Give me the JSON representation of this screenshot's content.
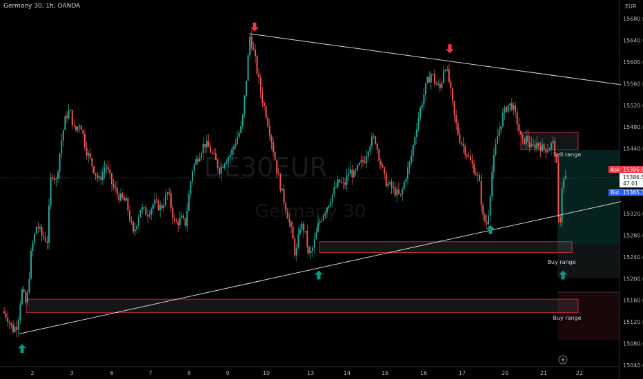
{
  "header": {
    "symbol_line": "Germany 30, 1h, OANDA"
  },
  "watermark": {
    "ticker": "DE30EUR",
    "name": "Germany 30"
  },
  "chart_data": {
    "type": "candlestick",
    "currency": "EUR",
    "y_ticks": [
      15040,
      15080,
      15120,
      15160,
      15200,
      15240,
      15280,
      15320,
      15360,
      15440,
      15480,
      15520,
      15560,
      15600,
      15640,
      15680
    ],
    "ylim": [
      15030,
      15700
    ],
    "x_ticks": [
      "2",
      "3",
      "6",
      "7",
      "8",
      "9",
      "10",
      "13",
      "14",
      "15",
      "16",
      "17",
      "20",
      "21",
      "22"
    ],
    "price_labels": {
      "ask_label": "Ask",
      "ask": "15386.8",
      "current": "15386.5",
      "countdown": "47:01",
      "bid_label": "Bid",
      "bid": "15385.3"
    },
    "zones": [
      {
        "label": "Sell range",
        "kind": "sell",
        "high": 15470,
        "low": 15438
      },
      {
        "label": "Buy range",
        "kind": "buy",
        "high": 15268,
        "low": 15248
      },
      {
        "label": "Buy range",
        "kind": "buy",
        "high": 15162,
        "low": 15137
      }
    ],
    "trendlines": [
      {
        "name": "upper",
        "from": [
          362,
          15652
        ],
        "to": [
          900,
          15558
        ]
      },
      {
        "name": "lower",
        "from": [
          28,
          15098
        ],
        "to": [
          900,
          15342
        ]
      }
    ],
    "markers": [
      {
        "dir": "up",
        "x": 32,
        "price": 15070
      },
      {
        "dir": "down",
        "x": 369,
        "price": 15665
      },
      {
        "dir": "up",
        "x": 462,
        "price": 15206
      },
      {
        "dir": "down",
        "x": 652,
        "price": 15625
      },
      {
        "dir": "up",
        "x": 711,
        "price": 15290
      },
      {
        "dir": "up",
        "x": 816,
        "price": 15206
      }
    ],
    "path": [
      [
        5,
        15140
      ],
      [
        12,
        15130
      ],
      [
        20,
        15105
      ],
      [
        27,
        15115
      ],
      [
        33,
        15180
      ],
      [
        40,
        15150
      ],
      [
        47,
        15250
      ],
      [
        55,
        15300
      ],
      [
        62,
        15280
      ],
      [
        70,
        15270
      ],
      [
        76,
        15400
      ],
      [
        83,
        15380
      ],
      [
        90,
        15450
      ],
      [
        97,
        15500
      ],
      [
        103,
        15510
      ],
      [
        110,
        15470
      ],
      [
        118,
        15490
      ],
      [
        126,
        15440
      ],
      [
        135,
        15410
      ],
      [
        145,
        15380
      ],
      [
        155,
        15410
      ],
      [
        165,
        15370
      ],
      [
        175,
        15350
      ],
      [
        185,
        15340
      ],
      [
        195,
        15280
      ],
      [
        205,
        15330
      ],
      [
        215,
        15320
      ],
      [
        225,
        15340
      ],
      [
        235,
        15330
      ],
      [
        245,
        15360
      ],
      [
        255,
        15300
      ],
      [
        265,
        15310
      ],
      [
        270,
        15300
      ],
      [
        280,
        15400
      ],
      [
        290,
        15430
      ],
      [
        298,
        15450
      ],
      [
        305,
        15440
      ],
      [
        313,
        15420
      ],
      [
        320,
        15400
      ],
      [
        328,
        15420
      ],
      [
        336,
        15430
      ],
      [
        345,
        15460
      ],
      [
        352,
        15480
      ],
      [
        358,
        15560
      ],
      [
        364,
        15650
      ],
      [
        372,
        15600
      ],
      [
        380,
        15540
      ],
      [
        388,
        15500
      ],
      [
        396,
        15450
      ],
      [
        403,
        15400
      ],
      [
        410,
        15360
      ],
      [
        418,
        15320
      ],
      [
        425,
        15280
      ],
      [
        430,
        15240
      ],
      [
        437,
        15300
      ],
      [
        443,
        15290
      ],
      [
        450,
        15240
      ],
      [
        456,
        15260
      ],
      [
        463,
        15300
      ],
      [
        470,
        15320
      ],
      [
        478,
        15340
      ],
      [
        485,
        15360
      ],
      [
        493,
        15380
      ],
      [
        500,
        15370
      ],
      [
        508,
        15400
      ],
      [
        515,
        15390
      ],
      [
        523,
        15410
      ],
      [
        530,
        15420
      ],
      [
        537,
        15450
      ],
      [
        545,
        15460
      ],
      [
        552,
        15420
      ],
      [
        560,
        15380
      ],
      [
        567,
        15370
      ],
      [
        575,
        15360
      ],
      [
        582,
        15350
      ],
      [
        590,
        15390
      ],
      [
        597,
        15420
      ],
      [
        605,
        15480
      ],
      [
        612,
        15520
      ],
      [
        620,
        15560
      ],
      [
        627,
        15580
      ],
      [
        633,
        15560
      ],
      [
        640,
        15550
      ],
      [
        646,
        15600
      ],
      [
        653,
        15560
      ],
      [
        660,
        15500
      ],
      [
        667,
        15460
      ],
      [
        675,
        15440
      ],
      [
        682,
        15420
      ],
      [
        690,
        15400
      ],
      [
        696,
        15380
      ],
      [
        702,
        15310
      ],
      [
        708,
        15300
      ],
      [
        715,
        15400
      ],
      [
        722,
        15460
      ],
      [
        730,
        15500
      ],
      [
        737,
        15520
      ],
      [
        744,
        15520
      ],
      [
        751,
        15490
      ],
      [
        758,
        15450
      ],
      [
        765,
        15460
      ],
      [
        772,
        15440
      ],
      [
        780,
        15450
      ],
      [
        788,
        15440
      ],
      [
        796,
        15440
      ],
      [
        803,
        15450
      ],
      [
        808,
        15420
      ],
      [
        812,
        15270
      ],
      [
        816,
        15370
      ],
      [
        820,
        15387
      ]
    ]
  }
}
